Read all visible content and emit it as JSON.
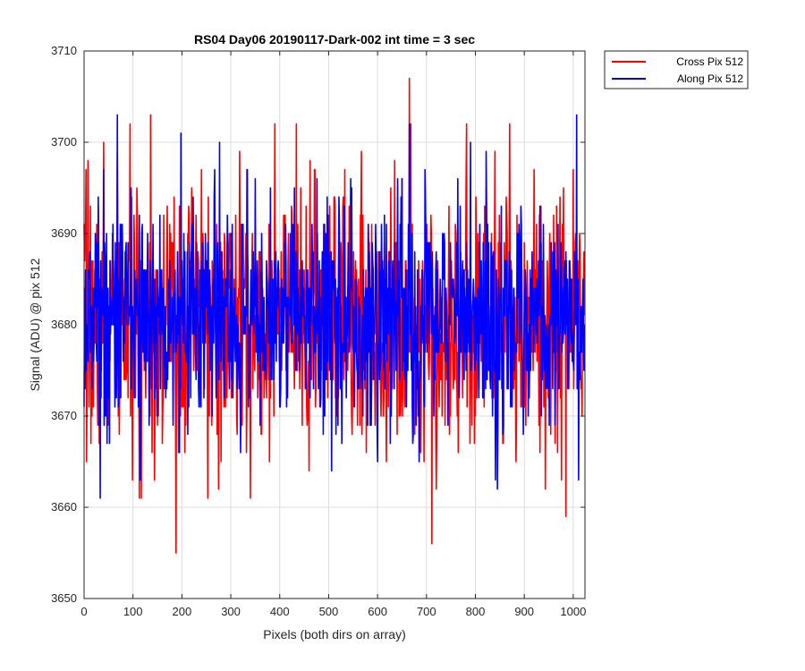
{
  "chart_data": {
    "type": "line",
    "title": "RS04 Day06 20190117-Dark-002 int time = 3 sec",
    "xlabel": "Pixels (both dirs on array)",
    "ylabel": "Signal (ADU) @ pix 512",
    "xlim": [
      0,
      1024
    ],
    "ylim": [
      3650,
      3710
    ],
    "xticks": [
      0,
      100,
      200,
      300,
      400,
      500,
      600,
      700,
      800,
      900,
      1000
    ],
    "yticks": [
      3650,
      3660,
      3670,
      3680,
      3690,
      3700,
      3710
    ],
    "grid": true,
    "legend_position": "outside-top-right",
    "series": [
      {
        "name": "Cross Pix 512",
        "color": "#ff0000",
        "seed": 7,
        "center": 3680.5,
        "sigma": 7,
        "min": 3655,
        "max": 3707,
        "extremes": [
          [
            5,
            3665
          ],
          [
            8,
            3698
          ],
          [
            40,
            3700
          ],
          [
            113,
            3661
          ],
          [
            136,
            3703
          ],
          [
            188,
            3655
          ],
          [
            240,
            3697
          ],
          [
            280,
            3665
          ],
          [
            340,
            3661
          ],
          [
            460,
            3664
          ],
          [
            567,
            3699
          ],
          [
            665,
            3707
          ],
          [
            668,
            3702
          ],
          [
            711,
            3656
          ],
          [
            720,
            3662
          ],
          [
            840,
            3699
          ],
          [
            870,
            3702
          ],
          [
            920,
            3697
          ],
          [
            985,
            3659
          ],
          [
            1000,
            3697
          ],
          [
            1018,
            3670
          ]
        ]
      },
      {
        "name": "Along Pix 512",
        "color": "#0000ff",
        "seed": 13,
        "center": 3681,
        "sigma": 6,
        "min": 3661,
        "max": 3703,
        "extremes": [
          [
            3,
            3686
          ],
          [
            33,
            3661
          ],
          [
            40,
            3697
          ],
          [
            68,
            3703
          ],
          [
            115,
            3663
          ],
          [
            198,
            3701
          ],
          [
            223,
            3694
          ],
          [
            320,
            3666
          ],
          [
            350,
            3696
          ],
          [
            430,
            3695
          ],
          [
            650,
            3696
          ],
          [
            665,
            3702
          ],
          [
            790,
            3700
          ],
          [
            822,
            3699
          ],
          [
            845,
            3662
          ],
          [
            1007,
            3703
          ],
          [
            1011,
            3663
          ]
        ]
      }
    ]
  }
}
